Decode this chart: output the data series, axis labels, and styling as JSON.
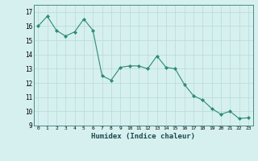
{
  "x": [
    0,
    1,
    2,
    3,
    4,
    5,
    6,
    7,
    8,
    9,
    10,
    11,
    12,
    13,
    14,
    15,
    16,
    17,
    18,
    19,
    20,
    21,
    22,
    23
  ],
  "y": [
    16.0,
    16.7,
    15.7,
    15.3,
    15.6,
    16.5,
    15.7,
    12.5,
    12.2,
    13.1,
    13.2,
    13.2,
    13.0,
    13.9,
    13.1,
    13.0,
    11.9,
    11.1,
    10.8,
    10.2,
    9.8,
    10.0,
    9.5,
    9.55
  ],
  "line_color": "#2e8b74",
  "marker": "D",
  "marker_size": 2.0,
  "bg_color": "#d6f0f0",
  "grid_color": "#b8d8d8",
  "xlabel": "Humidex (Indice chaleur)",
  "ylim": [
    9,
    17.5
  ],
  "xlim": [
    -0.5,
    23.5
  ],
  "yticks": [
    9,
    10,
    11,
    12,
    13,
    14,
    15,
    16,
    17
  ],
  "xtick_labels": [
    "0",
    "1",
    "2",
    "3",
    "4",
    "5",
    "6",
    "7",
    "8",
    "9",
    "10",
    "11",
    "12",
    "13",
    "14",
    "15",
    "16",
    "17",
    "18",
    "19",
    "20",
    "21",
    "22",
    "23"
  ]
}
